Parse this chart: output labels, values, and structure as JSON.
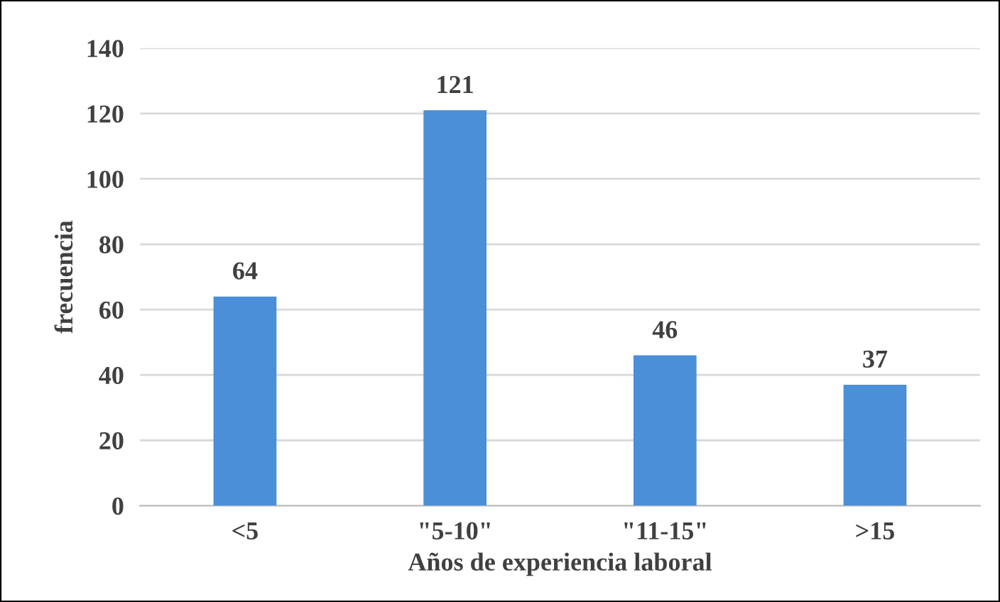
{
  "chart_data": {
    "type": "bar",
    "xlabel": "Años de experiencia laboral",
    "ylabel": "frecuencia",
    "categories": [
      "<5",
      "\"5-10\"",
      "\"11-15\"",
      ">15"
    ],
    "values": [
      64,
      121,
      46,
      37
    ],
    "color": "#4a8fd8",
    "ylim": [
      0,
      140
    ],
    "yticks": [
      0,
      20,
      40,
      60,
      80,
      100,
      120,
      140
    ],
    "grid": "y",
    "data_labels": true
  }
}
